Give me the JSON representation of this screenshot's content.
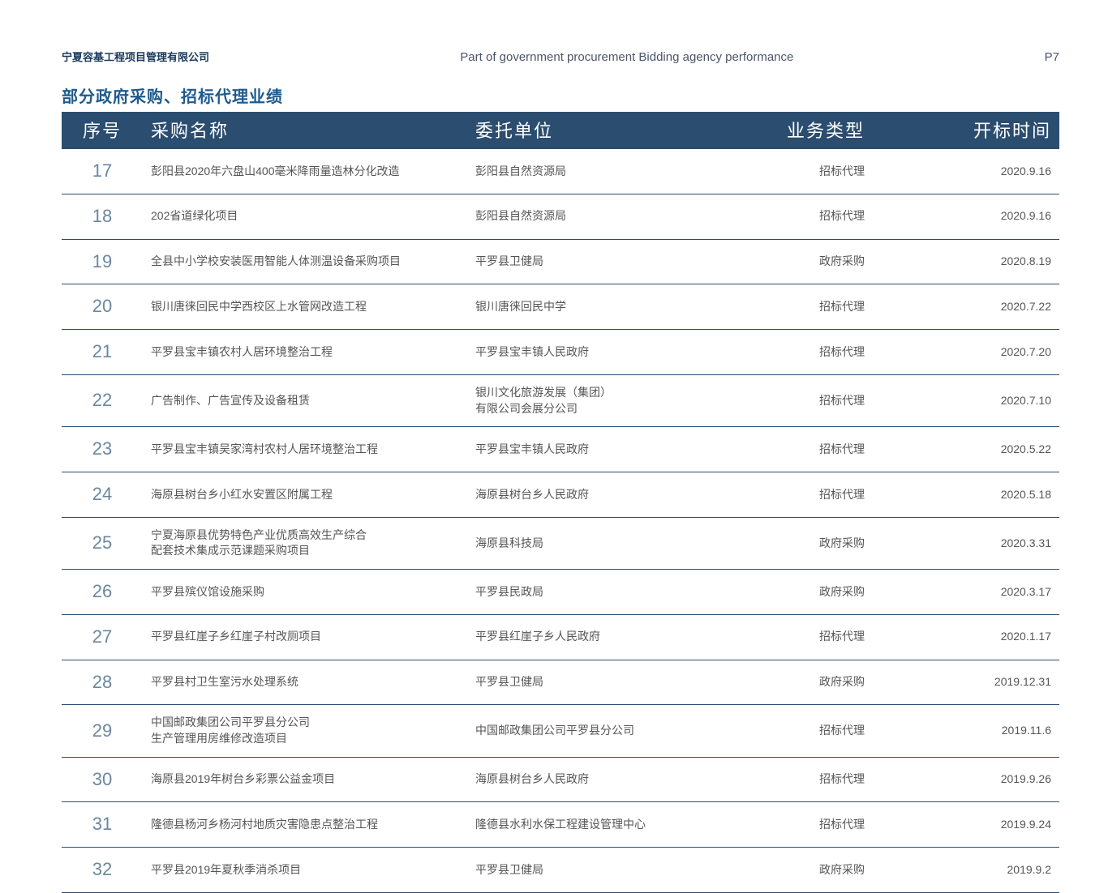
{
  "header": {
    "company": "宁夏容基工程项目管理有限公司",
    "subtitle": "Part of government procurement Bidding agency performance",
    "pagenum": "P7"
  },
  "section_title": "部分政府采购、招标代理业绩",
  "columns": {
    "num": "序号",
    "name": "采购名称",
    "unit": "委托单位",
    "type": "业务类型",
    "date": "开标时间"
  },
  "rows": [
    {
      "num": "17",
      "name": "彭阳县2020年六盘山400毫米降雨量造林分化改造",
      "unit": "彭阳县自然资源局",
      "type": "招标代理",
      "date": "2020.9.16"
    },
    {
      "num": "18",
      "name": "202省道绿化项目",
      "unit": "彭阳县自然资源局",
      "type": "招标代理",
      "date": "2020.9.16"
    },
    {
      "num": "19",
      "name": "全县中小学校安装医用智能人体测温设备采购项目",
      "unit": "平罗县卫健局",
      "type": "政府采购",
      "date": "2020.8.19"
    },
    {
      "num": "20",
      "name": "银川唐徕回民中学西校区上水管网改造工程",
      "unit": "银川唐徕回民中学",
      "type": "招标代理",
      "date": "2020.7.22"
    },
    {
      "num": "21",
      "name": "平罗县宝丰镇农村人居环境整治工程",
      "unit": "平罗县宝丰镇人民政府",
      "type": "招标代理",
      "date": "2020.7.20"
    },
    {
      "num": "22",
      "name": "广告制作、广告宣传及设备租赁",
      "unit": "银川文化旅游发展（集团）\n有限公司会展分公司",
      "type": "招标代理",
      "date": "2020.7.10"
    },
    {
      "num": "23",
      "name": "平罗县宝丰镇吴家湾村农村人居环境整治工程",
      "unit": "平罗县宝丰镇人民政府",
      "type": "招标代理",
      "date": "2020.5.22"
    },
    {
      "num": "24",
      "name": "海原县树台乡小红水安置区附属工程",
      "unit": "海原县树台乡人民政府",
      "type": "招标代理",
      "date": "2020.5.18"
    },
    {
      "num": "25",
      "name": "宁夏海原县优势特色产业优质高效生产综合\n配套技术集成示范课题采购项目",
      "unit": "海原县科技局",
      "type": "政府采购",
      "date": "2020.3.31"
    },
    {
      "num": "26",
      "name": "平罗县殡仪馆设施采购",
      "unit": "平罗县民政局",
      "type": "政府采购",
      "date": "2020.3.17"
    },
    {
      "num": "27",
      "name": "平罗县红崖子乡红崖子村改厕项目",
      "unit": "平罗县红崖子乡人民政府",
      "type": "招标代理",
      "date": "2020.1.17"
    },
    {
      "num": "28",
      "name": "平罗县村卫生室污水处理系统",
      "unit": "平罗县卫健局",
      "type": "政府采购",
      "date": "2019.12.31"
    },
    {
      "num": "29",
      "name": "中国邮政集团公司平罗县分公司\n生产管理用房维修改造项目",
      "unit": "中国邮政集团公司平罗县分公司",
      "type": "招标代理",
      "date": "2019.11.6"
    },
    {
      "num": "30",
      "name": "海原县2019年树台乡彩票公益金项目",
      "unit": "海原县树台乡人民政府",
      "type": "招标代理",
      "date": "2019.9.26"
    },
    {
      "num": "31",
      "name": "隆德县杨河乡杨河村地质灾害隐患点整治工程",
      "unit": "隆德县水利水保工程建设管理中心",
      "type": "招标代理",
      "date": "2019.9.24"
    },
    {
      "num": "32",
      "name": "平罗县2019年夏秋季消杀项目",
      "unit": "平罗县卫健局",
      "type": "政府采购",
      "date": "2019.9.2"
    }
  ]
}
